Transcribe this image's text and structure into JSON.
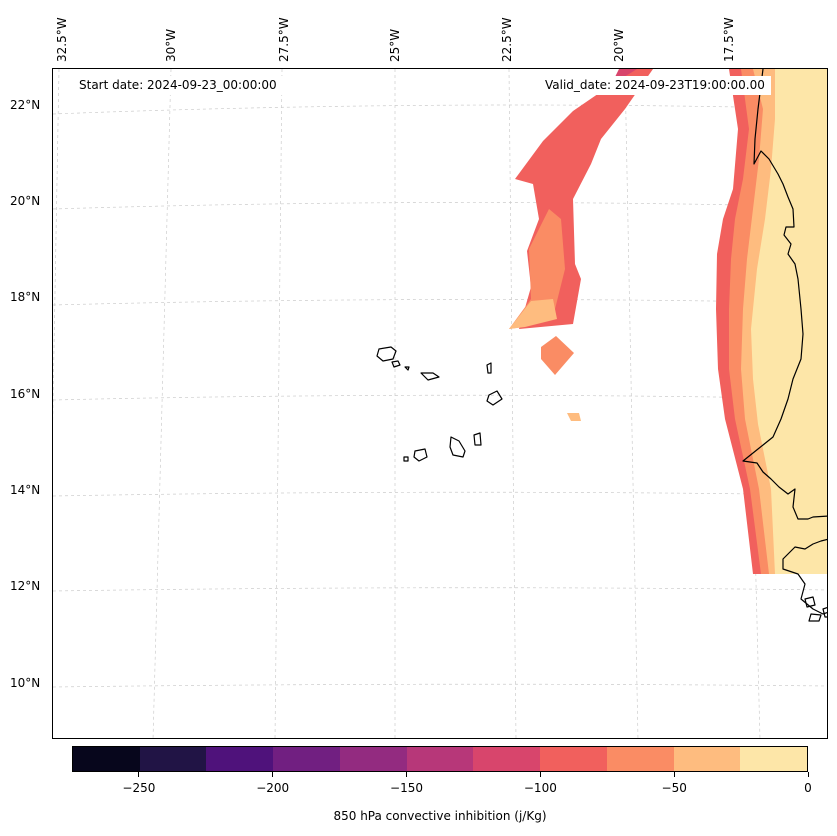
{
  "chart_data": {
    "type": "map",
    "title": "",
    "start_label": "Start date: 2024-09-23_00:00:00",
    "valid_label": "Valid_date: 2024-09-23T19:00:00.00",
    "lon_labels": [
      "32.5°W",
      "30°W",
      "27.5°W",
      "25°W",
      "22.5°W",
      "20°W",
      "17.5°W"
    ],
    "lat_labels": [
      "22°N",
      "20°N",
      "18°N",
      "16°N",
      "14°N",
      "12°N",
      "10°N"
    ],
    "colorbar": {
      "label": "850 hPa convective inhibition (j/Kg)",
      "levels": [
        -275,
        -250,
        -225,
        -200,
        -175,
        -150,
        -125,
        -100,
        -75,
        -50,
        -25,
        0
      ],
      "colors": [
        "#07061c",
        "#211445",
        "#4f127b",
        "#711f81",
        "#932b80",
        "#b73779",
        "#d8456c",
        "#f1605d",
        "#fa8c64",
        "#febc7f",
        "#fde6a8"
      ],
      "ticks": [
        "−250",
        "−200",
        "−150",
        "−100",
        "−50",
        "0"
      ]
    },
    "regions": [
      {
        "name": "mauritania-coast-band",
        "level": "-25 to 0"
      },
      {
        "name": "offshore-plume",
        "level": "-100 to -75"
      },
      {
        "name": "offshore-patch",
        "level": "-75 to -50"
      }
    ]
  }
}
